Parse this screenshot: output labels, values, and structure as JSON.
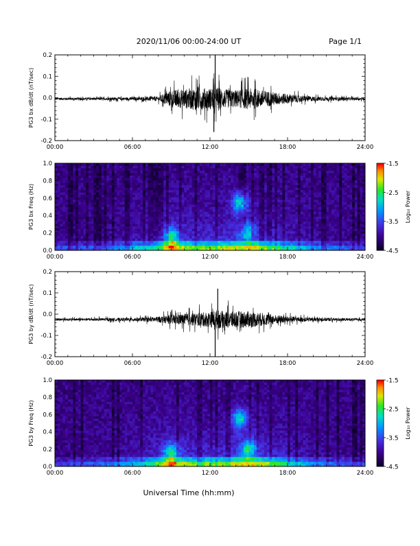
{
  "header": {
    "title": "2020/11/06  00:00-24:00 UT",
    "page": "Page 1/1"
  },
  "footer": {
    "xlabel": "Universal Time (hh:mm)"
  },
  "colors": {
    "axis": "#000000",
    "trace": "#000000",
    "spectro_bg": "#0b0030"
  },
  "chart_data": [
    {
      "type": "line",
      "component": "bx",
      "ylabel": "PG3 bx dB/dt (nT/sec)",
      "xlim": [
        0,
        24
      ],
      "ylim": [
        -0.2,
        0.2
      ],
      "xticks": [
        "00:00",
        "06:00",
        "12:00",
        "18:00",
        "24:00"
      ],
      "xtick_values": [
        0,
        6,
        12,
        18,
        24
      ],
      "yticks": [
        "0.2",
        "0.1",
        "0.0",
        "-0.1",
        "-0.2"
      ],
      "ytick_values": [
        0.2,
        0.1,
        0.0,
        -0.1,
        -0.2
      ],
      "baseline": -0.005,
      "envelope": {
        "x": [
          0,
          2,
          4,
          6,
          7,
          8,
          8.5,
          9,
          10,
          11,
          12,
          12.5,
          13,
          14,
          15,
          16,
          17,
          18,
          19,
          20,
          21,
          22,
          23,
          24
        ],
        "amp": [
          0.012,
          0.013,
          0.014,
          0.016,
          0.02,
          0.025,
          0.06,
          0.09,
          0.1,
          0.12,
          0.11,
          0.13,
          0.1,
          0.09,
          0.11,
          0.09,
          0.07,
          0.05,
          0.035,
          0.025,
          0.02,
          0.018,
          0.015,
          0.013
        ]
      },
      "spikes": [
        {
          "x": 12.4,
          "y": 0.2
        },
        {
          "x": 12.3,
          "y": -0.16
        }
      ]
    },
    {
      "type": "heatmap",
      "component": "bx",
      "ylabel": "PG3 bx Freq (Hz)",
      "xlim": [
        0,
        24
      ],
      "ylim": [
        0,
        1.0
      ],
      "xticks": [
        "00:00",
        "06:00",
        "12:00",
        "18:00",
        "24:00"
      ],
      "xtick_values": [
        0,
        6,
        12,
        18,
        24
      ],
      "yticks": [
        "1.0",
        "0.8",
        "0.6",
        "0.4",
        "0.2",
        "0.0"
      ],
      "ytick_values": [
        1.0,
        0.8,
        0.6,
        0.4,
        0.2,
        0.0
      ],
      "colorbar": {
        "label": "Log₁₀ Power",
        "ticks": [
          "-1.5",
          "-2.5",
          "-3.5",
          "-4.5"
        ],
        "tick_values": [
          -1.5,
          -2.5,
          -3.5,
          -4.5
        ],
        "range": [
          -4.5,
          -1.5
        ]
      },
      "features": [
        {
          "t": 9.0,
          "f": 0.15,
          "level": -3.0
        },
        {
          "t": 14.3,
          "f": 0.55,
          "level": -2.8
        },
        {
          "t": 14.8,
          "f": 0.2,
          "level": -3.1
        }
      ]
    },
    {
      "type": "line",
      "component": "by",
      "ylabel": "PG3 by dB/dt (nT/sec)",
      "xlim": [
        0,
        24
      ],
      "ylim": [
        -0.2,
        0.2
      ],
      "xticks": [
        "00:00",
        "06:00",
        "12:00",
        "18:00",
        "24:00"
      ],
      "xtick_values": [
        0,
        6,
        12,
        18,
        24
      ],
      "yticks": [
        "0.2",
        "0.1",
        "0.0",
        "-0.1",
        "-0.2"
      ],
      "ytick_values": [
        0.2,
        0.1,
        0.0,
        -0.1,
        -0.2
      ],
      "baseline": -0.025,
      "envelope": {
        "x": [
          0,
          2,
          4,
          6,
          7,
          8,
          8.5,
          9,
          10,
          11,
          12,
          12.5,
          13,
          14,
          15,
          16,
          17,
          18,
          19,
          20,
          21,
          22,
          23,
          24
        ],
        "amp": [
          0.012,
          0.013,
          0.015,
          0.018,
          0.022,
          0.03,
          0.04,
          0.05,
          0.06,
          0.07,
          0.08,
          0.1,
          0.09,
          0.09,
          0.085,
          0.07,
          0.05,
          0.035,
          0.025,
          0.02,
          0.018,
          0.016,
          0.014,
          0.012
        ]
      },
      "spikes": [
        {
          "x": 12.4,
          "y": -0.2
        },
        {
          "x": 12.6,
          "y": 0.12
        }
      ]
    },
    {
      "type": "heatmap",
      "component": "by",
      "ylabel": "PG3 by Freq (Hz)",
      "xlim": [
        0,
        24
      ],
      "ylim": [
        0,
        1.0
      ],
      "xticks": [
        "00:00",
        "06:00",
        "12:00",
        "18:00",
        "24:00"
      ],
      "xtick_values": [
        0,
        6,
        12,
        18,
        24
      ],
      "yticks": [
        "1.0",
        "0.8",
        "0.6",
        "0.4",
        "0.2",
        "0.0"
      ],
      "ytick_values": [
        1.0,
        0.8,
        0.6,
        0.4,
        0.2,
        0.0
      ],
      "colorbar": {
        "label": "Log₁₀ Power",
        "ticks": [
          "-1.5",
          "-2.5",
          "-3.5",
          "-4.5"
        ],
        "tick_values": [
          -1.5,
          -2.5,
          -3.5,
          -4.5
        ],
        "range": [
          -4.5,
          -1.5
        ]
      },
      "features": [
        {
          "t": 9.0,
          "f": 0.15,
          "level": -3.0
        },
        {
          "t": 14.3,
          "f": 0.55,
          "level": -2.9
        },
        {
          "t": 15.0,
          "f": 0.2,
          "level": -3.0
        }
      ]
    }
  ]
}
